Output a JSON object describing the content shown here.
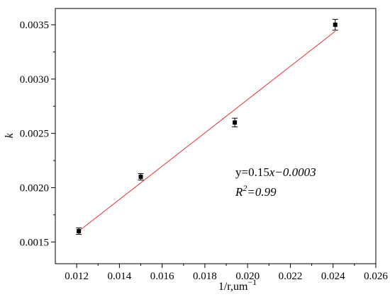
{
  "chart_data": {
    "type": "scatter",
    "xlabel": "1/r,um",
    "xlabel_superscript": "−1",
    "ylabel": "k",
    "xlim": [
      0.011,
      0.026
    ],
    "ylim": [
      0.0013,
      0.00365
    ],
    "x_ticks": [
      {
        "value": 0.012,
        "label": "0.012"
      },
      {
        "value": 0.014,
        "label": "0.014"
      },
      {
        "value": 0.016,
        "label": "0.016"
      },
      {
        "value": 0.018,
        "label": "0.018"
      },
      {
        "value": 0.02,
        "label": "0.020"
      },
      {
        "value": 0.022,
        "label": "0.022"
      },
      {
        "value": 0.024,
        "label": "0.024"
      },
      {
        "value": 0.026,
        "label": "0.026"
      }
    ],
    "y_ticks": [
      {
        "value": 0.0015,
        "label": "0.0015"
      },
      {
        "value": 0.002,
        "label": "0.0020"
      },
      {
        "value": 0.0025,
        "label": "0.0025"
      },
      {
        "value": 0.003,
        "label": "0.0030"
      },
      {
        "value": 0.0035,
        "label": "0.0035"
      }
    ],
    "points": [
      {
        "x": 0.0121,
        "y": 0.0016,
        "err": 3e-05
      },
      {
        "x": 0.015,
        "y": 0.0021,
        "err": 3e-05
      },
      {
        "x": 0.0194,
        "y": 0.0026,
        "err": 4e-05
      },
      {
        "x": 0.0241,
        "y": 0.0035,
        "err": 5e-05
      }
    ],
    "fit_line": {
      "x_start": 0.0121,
      "y_start": 0.0016,
      "x_end": 0.0241,
      "y_end": 0.00344,
      "color": "#e03030"
    },
    "annotation": {
      "equation_prefix": "y=0.15",
      "equation_var": "x",
      "equation_suffix": "−0.0003",
      "r2_label": "R",
      "r2_sup": "2",
      "r2_value": "=0.99"
    },
    "grid": false
  }
}
